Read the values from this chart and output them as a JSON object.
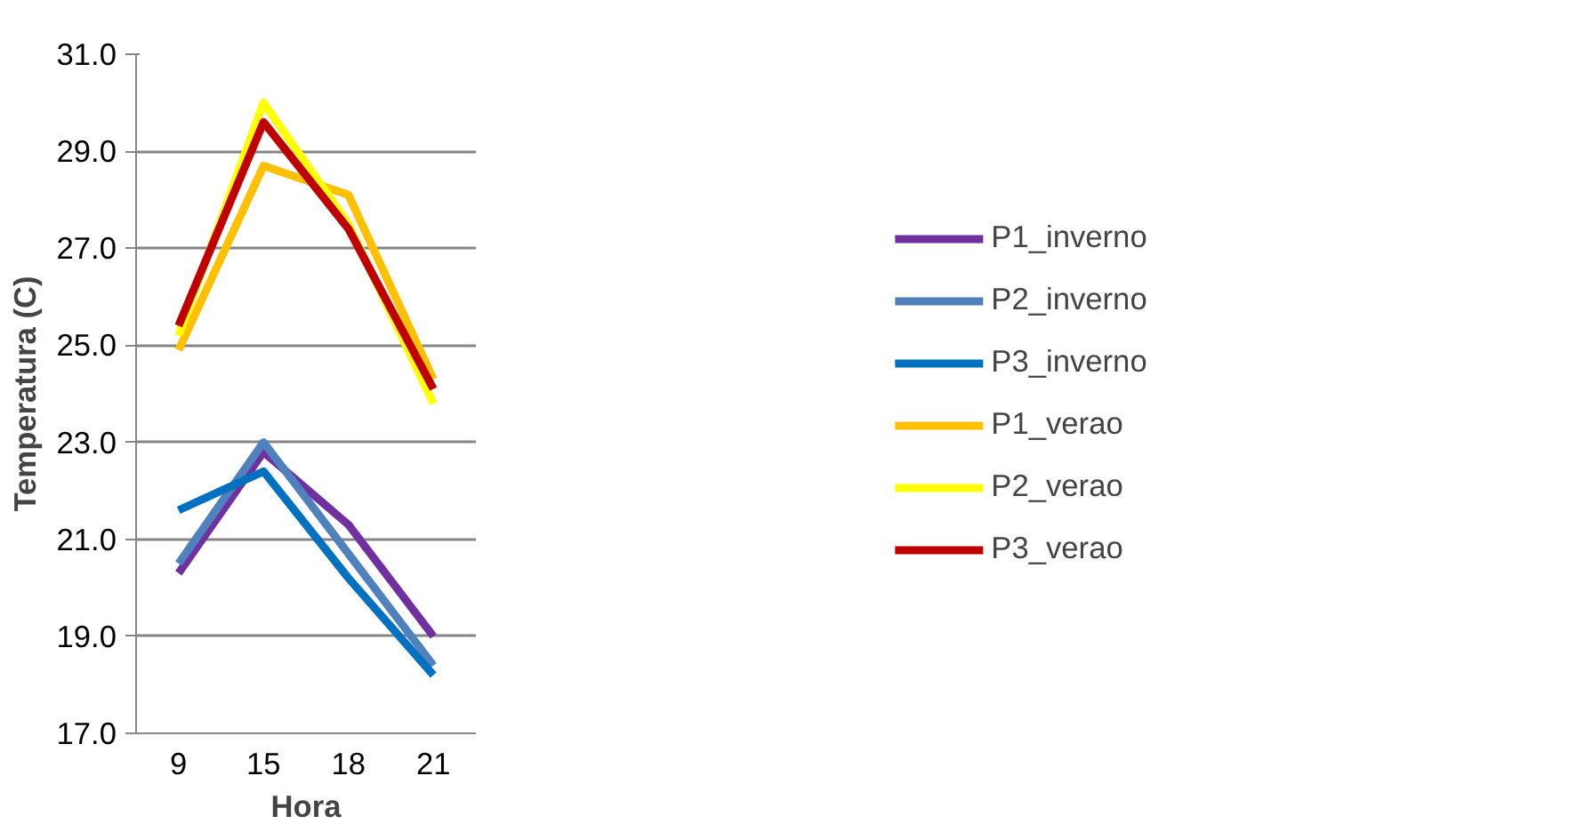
{
  "chart_data": {
    "type": "line",
    "xlabel": "Hora",
    "ylabel": "Temperatura (C)",
    "categories": [
      "9",
      "15",
      "18",
      "21"
    ],
    "series": [
      {
        "name": "P1_inverno",
        "color": "#7030a0",
        "values": [
          20.3,
          22.8,
          21.3,
          19.0
        ]
      },
      {
        "name": "P2_inverno",
        "color": "#4f81bd",
        "values": [
          20.5,
          23.0,
          20.7,
          18.4
        ]
      },
      {
        "name": "P3_inverno",
        "color": "#0070c0",
        "values": [
          21.6,
          22.4,
          20.2,
          18.2
        ]
      },
      {
        "name": "P1_verao",
        "color": "#ffc000",
        "values": [
          24.9,
          28.7,
          28.1,
          24.3
        ]
      },
      {
        "name": "P2_verao",
        "color": "#ffff00",
        "values": [
          25.2,
          30.0,
          27.5,
          23.8
        ]
      },
      {
        "name": "P3_verao",
        "color": "#c00000",
        "values": [
          25.4,
          29.6,
          27.4,
          24.1
        ]
      }
    ],
    "ylim": [
      17,
      31
    ],
    "yticks": [
      {
        "value": 17,
        "label": "17.0"
      },
      {
        "value": 19,
        "label": "19.0"
      },
      {
        "value": 21,
        "label": "21.0"
      },
      {
        "value": 23,
        "label": "23.0"
      },
      {
        "value": 25,
        "label": "25.0"
      },
      {
        "value": 27,
        "label": "27.0"
      },
      {
        "value": 29,
        "label": "29.0"
      },
      {
        "value": 31,
        "label": "31.0"
      }
    ],
    "grid": "y",
    "legend": "right",
    "marker": "none",
    "line_style": "solid"
  }
}
